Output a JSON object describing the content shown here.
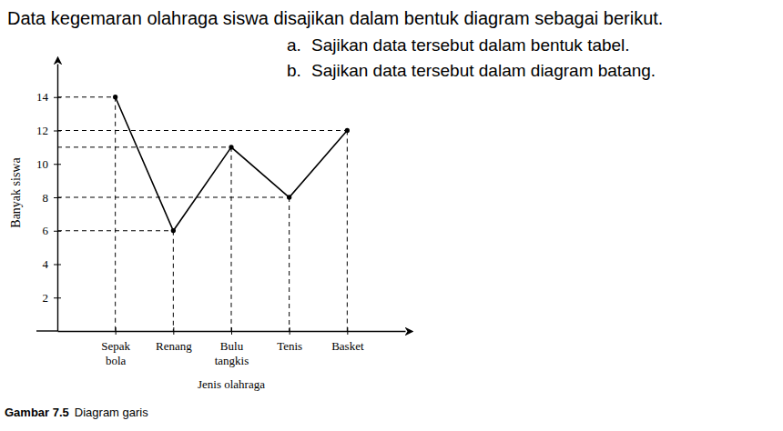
{
  "chart_data": {
    "type": "line",
    "x_label": "Jenis olahraga",
    "y_label": "Banyak siswa",
    "categories": [
      "Sepak bola",
      "Renang",
      "Bulu tangkis",
      "Tenis",
      "Basket"
    ],
    "values": [
      14,
      6,
      11,
      8,
      12
    ],
    "color": "#000000",
    "marker": "circle",
    "line_style": "solid",
    "ylim": [
      0,
      16
    ],
    "yticks": [
      2,
      4,
      6,
      8,
      10,
      12,
      14
    ],
    "grid": false
  },
  "text": {
    "intro": "Data kegemaran olahraga siswa disajikan dalam bentuk diagram sebagai berikut.",
    "tasks": [
      {
        "label": "a.",
        "text": "Sajikan data tersebut dalam bentuk tabel."
      },
      {
        "label": "b.",
        "text": "Sajikan data tersebut dalam diagram batang."
      }
    ],
    "caption_label": "Gambar 7.5",
    "caption": "Diagram garis"
  }
}
